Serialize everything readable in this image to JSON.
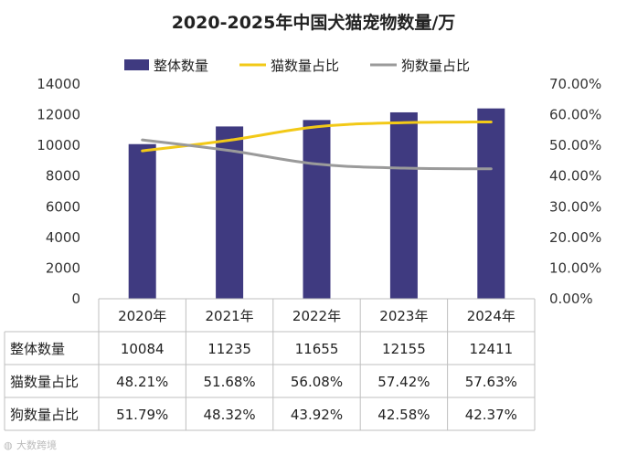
{
  "chart_data": {
    "type": "bar",
    "title": "2020-2025年中国犬猫宠物数量/万",
    "categories": [
      "2020年",
      "2021年",
      "2022年",
      "2023年",
      "2024年"
    ],
    "series": [
      {
        "name": "整体数量",
        "kind": "bar",
        "axis": "left",
        "color": "#3f3a80",
        "values": [
          10084,
          11235,
          11655,
          12155,
          12411
        ],
        "labels": [
          "10084",
          "11235",
          "11655",
          "12155",
          "12411"
        ]
      },
      {
        "name": "猫数量占比",
        "kind": "line",
        "axis": "right",
        "color": "#f2c917",
        "values": [
          48.21,
          51.68,
          56.08,
          57.42,
          57.63
        ],
        "labels": [
          "48.21%",
          "51.68%",
          "56.08%",
          "57.42%",
          "57.63%"
        ]
      },
      {
        "name": "狗数量占比",
        "kind": "line",
        "axis": "right",
        "color": "#9a9a9a",
        "values": [
          51.79,
          48.32,
          43.92,
          42.58,
          42.37
        ],
        "labels": [
          "51.79%",
          "48.32%",
          "43.92%",
          "42.58%",
          "42.37%"
        ]
      }
    ],
    "y_left": {
      "min": 0,
      "max": 14000,
      "ticks": [
        "0",
        "2000",
        "4000",
        "6000",
        "8000",
        "10000",
        "12000",
        "14000"
      ]
    },
    "y_right": {
      "min": 0,
      "max": 70,
      "ticks": [
        "0.00%",
        "10.00%",
        "20.00%",
        "30.00%",
        "40.00%",
        "50.00%",
        "60.00%",
        "70.00%"
      ]
    },
    "legend_position": "top",
    "data_table": true,
    "grid": false
  },
  "watermark": "大数跨境"
}
